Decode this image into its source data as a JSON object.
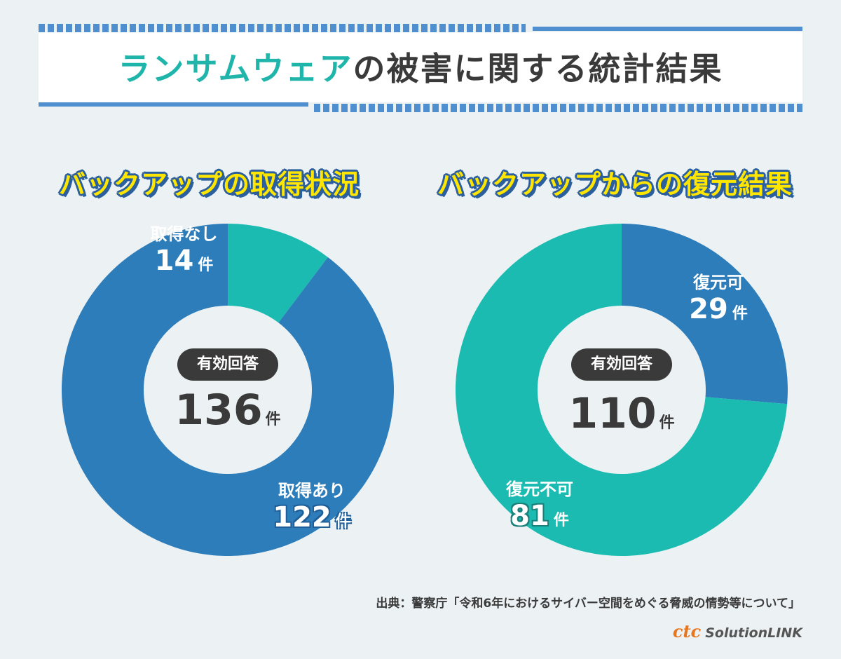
{
  "header": {
    "title_accent": "ランサムウェア",
    "title_rest": "の被害に関する統計結果"
  },
  "colors": {
    "blue": "#2e7dbb",
    "teal": "#1bbbb1",
    "accent_text": "#1fb5ab",
    "heading_yellow": "#ffe600"
  },
  "charts": {
    "left": {
      "title": "バックアップの取得状況",
      "center_label": "有効回答",
      "total_value": "136",
      "total_unit": "件",
      "slices": [
        {
          "label": "取得なし",
          "value": "14",
          "unit": "件"
        },
        {
          "label": "取得あり",
          "value": "122",
          "unit": "件"
        }
      ]
    },
    "right": {
      "title": "バックアップからの復元結果",
      "center_label": "有効回答",
      "total_value": "110",
      "total_unit": "件",
      "slices": [
        {
          "label": "復元可",
          "value": "29",
          "unit": "件"
        },
        {
          "label": "復元不可",
          "value": "81",
          "unit": "件"
        }
      ]
    }
  },
  "chart_data": [
    {
      "type": "pie",
      "title": "バックアップの取得状況",
      "categories": [
        "取得なし",
        "取得あり"
      ],
      "values": [
        14,
        122
      ],
      "total": 136
    },
    {
      "type": "pie",
      "title": "バックアップからの復元結果",
      "categories": [
        "復元可",
        "復元不可"
      ],
      "values": [
        29,
        81
      ],
      "total": 110
    }
  ],
  "footer": {
    "source": "出典：警察庁「令和6年におけるサイバー空間をめぐる脅威の情勢等について」",
    "logo_ctc": "ctc",
    "logo_text": "SolutionLINK"
  }
}
